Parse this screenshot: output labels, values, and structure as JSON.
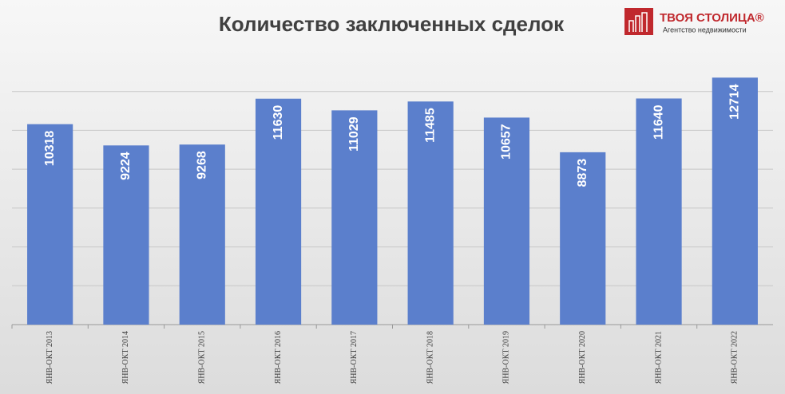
{
  "chart_data": {
    "type": "bar",
    "title": "Количество заключенных сделок",
    "categories": [
      "ЯНВ-ОКТ 2013",
      "ЯНВ-ОКТ 2014",
      "ЯНВ-ОКТ 2015",
      "ЯНВ-ОКТ 2016",
      "ЯНВ-ОКТ 2017",
      "ЯНВ-ОКТ 2018",
      "ЯНВ-ОКТ 2019",
      "ЯНВ-ОКТ 2020",
      "ЯНВ-ОКТ 2021",
      "ЯНВ-ОКТ 2022"
    ],
    "values": [
      10318,
      9224,
      9268,
      11630,
      11029,
      11485,
      10657,
      8873,
      11640,
      12714
    ],
    "color": "#5b7fcc",
    "ylim": [
      0,
      14000
    ],
    "yticks": [
      0,
      2000,
      4000,
      6000,
      8000,
      10000,
      12000
    ],
    "grid": true
  },
  "logo": {
    "name": "ТВОЯ СТОЛИЦА®",
    "tagline": "Агентство недвижимости"
  }
}
